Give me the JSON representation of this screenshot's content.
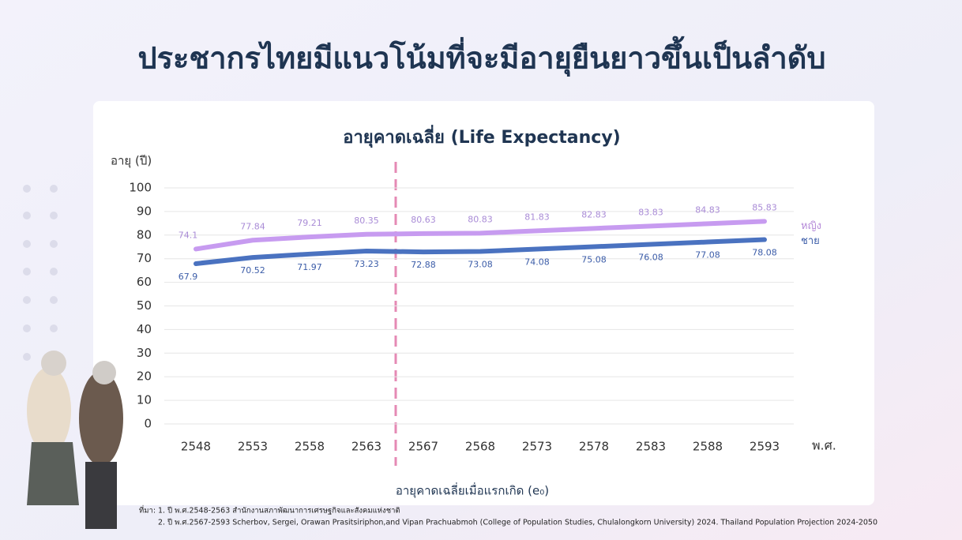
{
  "page_title": "ประชากรไทยมีแนวโน้มที่จะมีอายุยืนยาวขึ้นเป็นลำดับ",
  "chart_data": {
    "type": "line",
    "title": "อายุคาดเฉลี่ย (Life Expectancy)",
    "y_label": "อายุ (ปี)",
    "x_label": "พ.ศ.",
    "annotation": "อายุคาดเฉลี่ยเมื่อแรกเกิด (e₀)",
    "categories": [
      "2548",
      "2553",
      "2558",
      "2563",
      "2567",
      "2568",
      "2573",
      "2578",
      "2583",
      "2588",
      "2593"
    ],
    "series": [
      {
        "name": "หญิง",
        "color": "#c79bf0",
        "values": [
          74.1,
          77.84,
          79.21,
          80.35,
          80.63,
          80.83,
          81.83,
          82.83,
          83.83,
          84.83,
          85.83
        ]
      },
      {
        "name": "ชาย",
        "color": "#4a72c0",
        "values": [
          67.9,
          70.52,
          71.97,
          73.23,
          72.88,
          73.08,
          74.08,
          75.08,
          76.08,
          77.08,
          78.08
        ]
      }
    ],
    "ylim": [
      0,
      100
    ],
    "yticks": [
      0,
      10,
      20,
      30,
      40,
      50,
      60,
      70,
      80,
      90,
      100
    ],
    "grid": true
  },
  "source": {
    "label": "ที่มา:",
    "items": [
      "1. ปี พ.ศ.2548-2563  สำนักงานสภาพัฒนาการเศรษฐกิจและสังคมแห่งชาติ",
      "2. ปี พ.ศ.2567-2593  Scherbov, Sergei, Orawan Prasitsiriphon,and Vipan Prachuabmoh (College of Population Studies, Chulalongkorn University) 2024. Thailand Population Projection 2024-2050"
    ]
  }
}
